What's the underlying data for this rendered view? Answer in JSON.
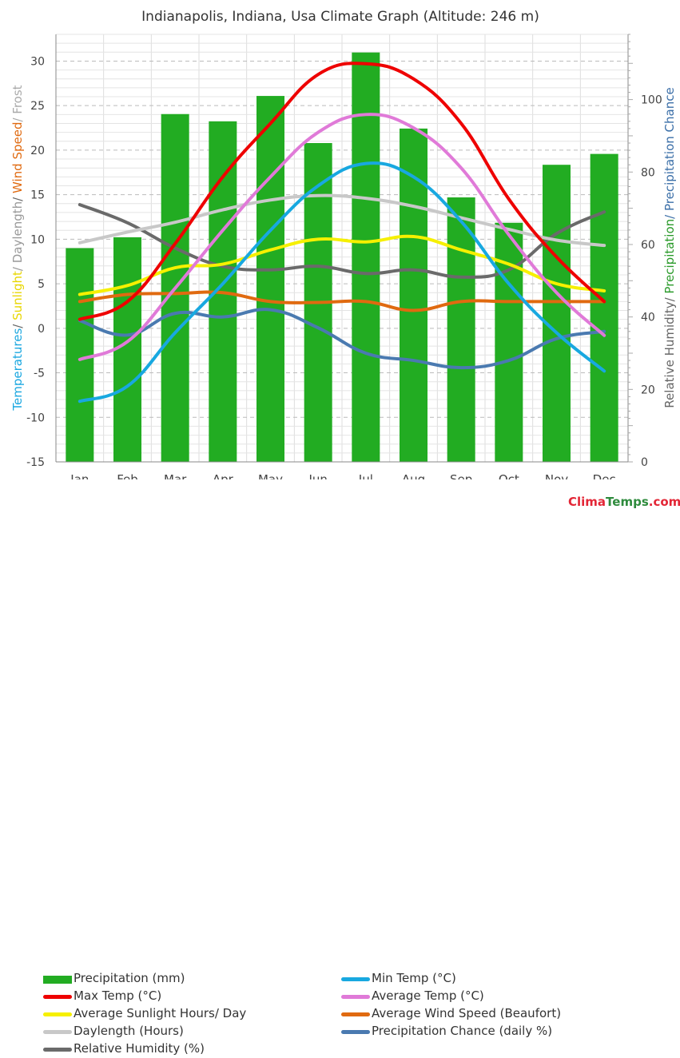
{
  "title": "Indianapolis, Indiana, Usa Climate Graph (Altitude: 246 m)",
  "brand": {
    "part1": "Clima",
    "part2": "Temps",
    "part3": ".com"
  },
  "left_axis_title": [
    {
      "text": "Temperatures",
      "color": "#1aa7e0"
    },
    {
      "text": "/ ",
      "color": "#666666"
    },
    {
      "text": "Sunlight",
      "color": "#e8d600"
    },
    {
      "text": "/ Daylength",
      "color": "#999999"
    },
    {
      "text": "/ ",
      "color": "#666666"
    },
    {
      "text": "Wind Speed",
      "color": "#e06a10"
    },
    {
      "text": "/ Frost",
      "color": "#aaaaaa"
    }
  ],
  "right_axis_title": [
    {
      "text": "Relative Humidity/ ",
      "color": "#666666"
    },
    {
      "text": "Precipitation",
      "color": "#2a9a2a"
    },
    {
      "text": "/ Precipitation Chance",
      "color": "#3b6fa8"
    }
  ],
  "chart_data": {
    "type": "bar",
    "categories": [
      "Jan",
      "Feb",
      "Mar",
      "Apr",
      "May",
      "Jun",
      "Jul",
      "Aug",
      "Sep",
      "Oct",
      "Nov",
      "Dec"
    ],
    "left_axis": {
      "ylim": [
        -15,
        33
      ],
      "ticks": [
        -15,
        -10,
        -5,
        0,
        5,
        10,
        15,
        20,
        25,
        30
      ]
    },
    "right_axis": {
      "ylim": [
        0,
        118
      ],
      "ticks": [
        0,
        20,
        40,
        60,
        80,
        100
      ]
    },
    "grid": true,
    "legend_placement": "bottom",
    "bars": {
      "name": "Precipitation (mm)",
      "axis": "right",
      "color": "#22ac22",
      "values": [
        59,
        62,
        96,
        94,
        101,
        88,
        113,
        92,
        73,
        66,
        82,
        85
      ]
    },
    "series": [
      {
        "name": "Max Temp (°C)",
        "axis": "left",
        "color": "#ee0000",
        "width": 4,
        "values": [
          1,
          3,
          9.5,
          17,
          23,
          28.5,
          29.7,
          28,
          23,
          14.5,
          8,
          3
        ]
      },
      {
        "name": "Min Temp (°C)",
        "axis": "left",
        "color": "#18a8e0",
        "width": 4,
        "values": [
          -8.2,
          -6.5,
          -0.5,
          5,
          11,
          16,
          18.5,
          17,
          12,
          5,
          -0.5,
          -4.8
        ]
      },
      {
        "name": "Average Temp (°C)",
        "axis": "left",
        "color": "#e07ad8",
        "width": 4,
        "values": [
          -3.5,
          -1.5,
          4.5,
          11,
          17,
          22,
          24,
          22.5,
          18,
          10.5,
          4,
          -0.8
        ]
      },
      {
        "name": "Average Sunlight Hours/ Day",
        "axis": "left",
        "color": "#f6f000",
        "width": 4,
        "values": [
          3.8,
          4.8,
          6.8,
          7.2,
          8.8,
          10,
          9.7,
          10.3,
          8.8,
          7.2,
          5,
          4.2
        ]
      },
      {
        "name": "Average Wind Speed (Beaufort)",
        "axis": "left",
        "color": "#e06a10",
        "width": 4,
        "values": [
          3,
          3.8,
          3.9,
          4,
          3,
          2.9,
          3,
          2,
          3,
          3,
          3,
          3
        ]
      },
      {
        "name": "Daylength (Hours)",
        "axis": "left",
        "color": "#c8c8c8",
        "width": 4,
        "values": [
          9.6,
          10.8,
          11.9,
          13.3,
          14.4,
          14.9,
          14.6,
          13.7,
          12.4,
          11.1,
          9.9,
          9.3
        ]
      },
      {
        "name": "Precipitation Chance (daily %)",
        "axis": "right",
        "color": "#4a7ab0",
        "width": 4,
        "values": [
          39,
          35,
          41,
          40,
          42,
          37,
          30,
          28,
          26,
          28,
          34,
          36
        ]
      },
      {
        "name": "Relative Humidity (%)",
        "axis": "right",
        "color": "#6a6a6a",
        "width": 4,
        "values": [
          71,
          66,
          59,
          54,
          53,
          54,
          52,
          53,
          51,
          53,
          63,
          69
        ]
      }
    ]
  },
  "legend": [
    {
      "label": "Precipitation (mm)",
      "kind": "bar",
      "color": "#22ac22"
    },
    {
      "label": "Min Temp (°C)",
      "kind": "line",
      "color": "#18a8e0"
    },
    {
      "label": "Max Temp (°C)",
      "kind": "line",
      "color": "#ee0000"
    },
    {
      "label": "Average Temp (°C)",
      "kind": "line",
      "color": "#e07ad8"
    },
    {
      "label": "Average Sunlight Hours/ Day",
      "kind": "line",
      "color": "#f6f000"
    },
    {
      "label": "Average Wind Speed (Beaufort)",
      "kind": "line",
      "color": "#e06a10"
    },
    {
      "label": "Daylength (Hours)",
      "kind": "line",
      "color": "#c8c8c8"
    },
    {
      "label": "Precipitation Chance (daily %)",
      "kind": "line",
      "color": "#4a7ab0"
    },
    {
      "label": "Relative Humidity (%)",
      "kind": "line",
      "color": "#6a6a6a"
    }
  ]
}
